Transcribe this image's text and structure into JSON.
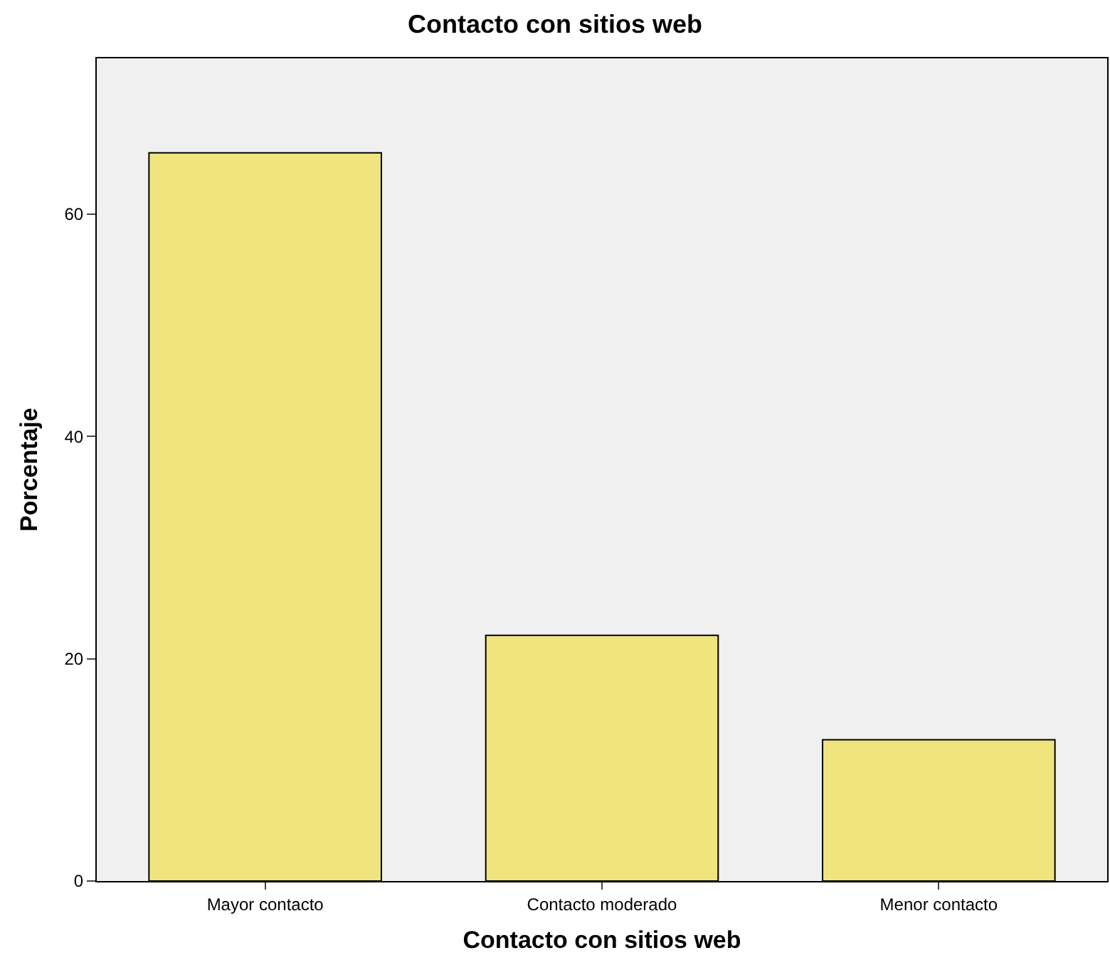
{
  "chart_data": {
    "type": "bar",
    "title": "Contacto con sitios web",
    "xlabel": "Contacto con sitios web",
    "ylabel": "Porcentaje",
    "categories": [
      "Mayor contacto",
      "Contacto moderado",
      "Menor contacto"
    ],
    "values": [
      65.5,
      22.1,
      12.7
    ],
    "color": "#f0e47e",
    "ylim": [
      0,
      74
    ],
    "yticks": [
      0,
      20,
      40,
      60
    ],
    "grid": false,
    "legend": false
  }
}
